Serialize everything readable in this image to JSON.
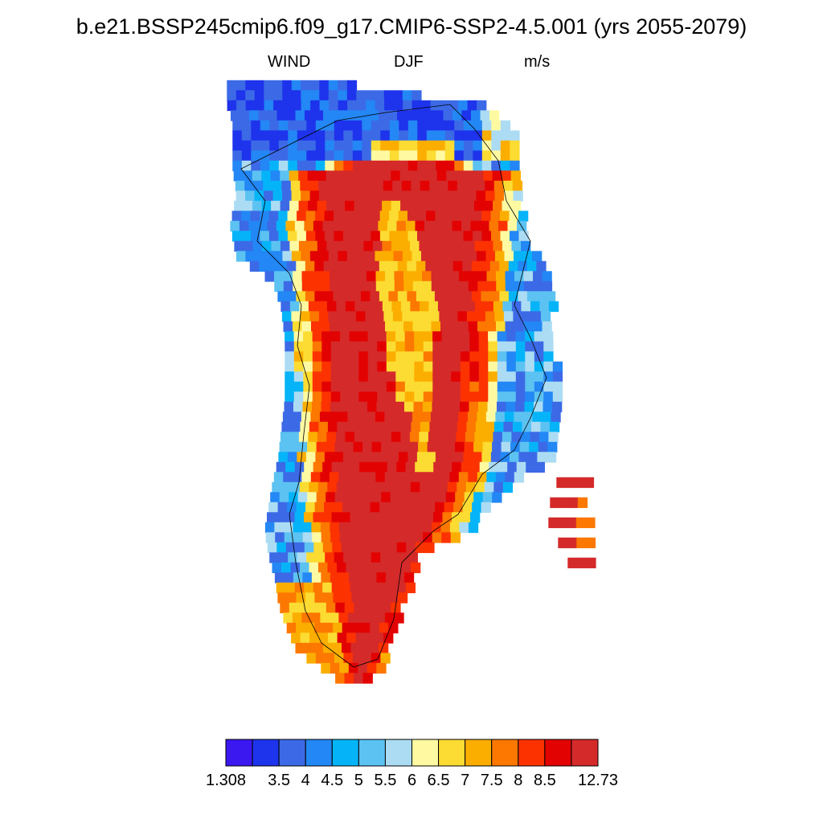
{
  "title": "b.e21.BSSP245cmip6.f09_g17.CMIP6-SSP2-4.5.001 (yrs 2055-2079)",
  "subtitle": {
    "variable": "WIND",
    "season": "DJF",
    "units": "m/s"
  },
  "colorbar": {
    "colors": [
      "#3b17f0",
      "#1e33ec",
      "#3c6ae6",
      "#2387f5",
      "#05b4f8",
      "#5cc2f2",
      "#acdcf4",
      "#fffaa2",
      "#fcdc32",
      "#fcae00",
      "#fc7800",
      "#fc3200",
      "#e30202",
      "#d42a2a"
    ],
    "labels": [
      "1.308",
      "3.5",
      "4",
      "4.5",
      "5",
      "5.5",
      "6",
      "6.5",
      "7",
      "7.5",
      "8",
      "8.5",
      "12.73"
    ]
  }
}
